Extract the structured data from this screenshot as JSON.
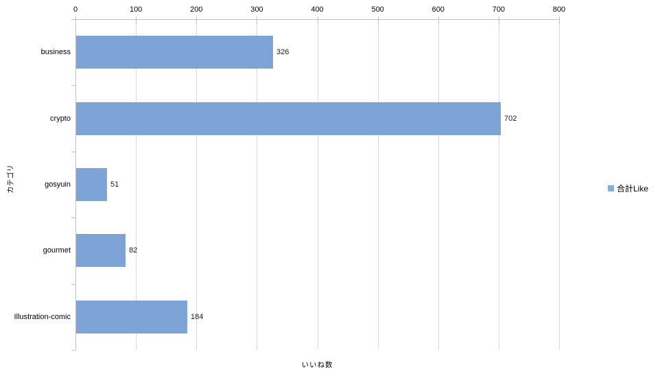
{
  "chart_data": {
    "type": "bar",
    "orientation": "horizontal",
    "title": "",
    "categories": [
      "business",
      "crypto",
      "gosyuin",
      "gourmet",
      "Illustration-comic"
    ],
    "series": [
      {
        "name": "合計Like",
        "values": [
          326,
          702,
          51,
          82,
          184
        ]
      }
    ],
    "data_labels": [
      "326",
      "702",
      "51",
      "82",
      "184"
    ],
    "xlabel": "いいね数",
    "ylabel": "カテゴリ",
    "xlim": [
      0,
      800
    ],
    "xticks": [
      0,
      100,
      200,
      300,
      400,
      500,
      600,
      700,
      800
    ],
    "grid": "vertical-only",
    "legend": {
      "position": "right",
      "entries": [
        "合計Like"
      ]
    },
    "colors": {
      "bar": "#7ea4d7",
      "legend_swatch": "#87abdb",
      "gridline": "#d9d9d9",
      "axis": "#bfbfbf",
      "text": "#000000",
      "background": "#ffffff"
    }
  }
}
